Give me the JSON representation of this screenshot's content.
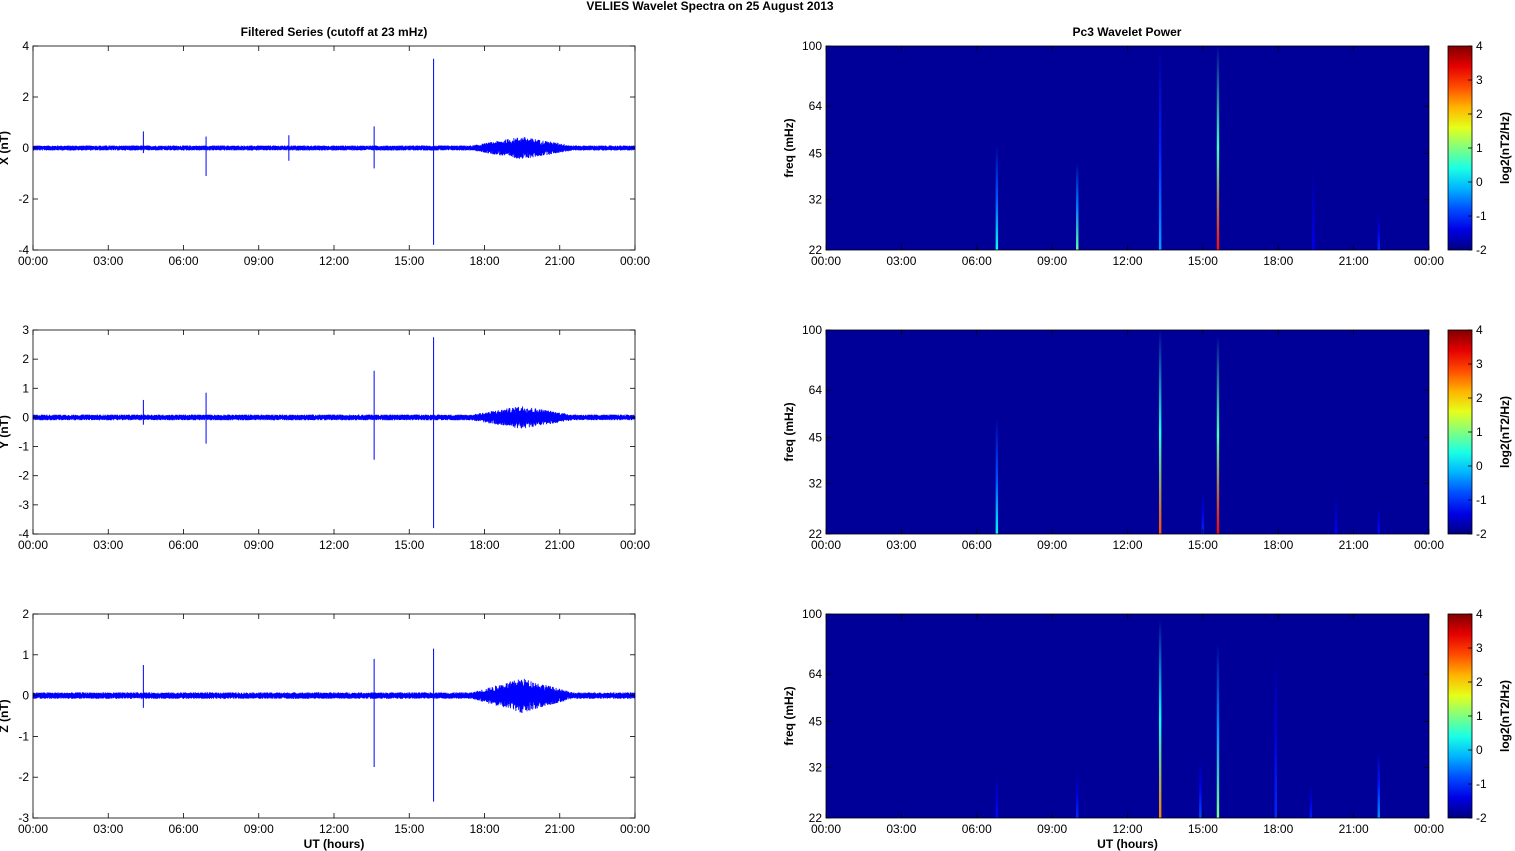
{
  "figure": {
    "title": "VELIES Wavelet Spectra on 25 August    2013",
    "left_title": "Filtered Series (cutoff at 23 mHz)",
    "right_title": "Pc3 Wavelet Power",
    "xlabel": "UT (hours)"
  },
  "chart_data": [
    {
      "type": "line",
      "ylabel": "X (nT)",
      "xlabel": "",
      "x_ticks": [
        "00:00",
        "03:00",
        "06:00",
        "09:00",
        "12:00",
        "15:00",
        "18:00",
        "21:00",
        "00:00"
      ],
      "xlim": [
        0,
        24
      ],
      "ylim": [
        -4,
        4
      ],
      "y_ticks": [
        "-4",
        "-2",
        "0",
        "2",
        "4"
      ],
      "y_tick_values": [
        -4,
        -2,
        0,
        2,
        4
      ],
      "series_color": "#0000ff",
      "noise_amplitude": 0.1,
      "active_window": [
        17.5,
        21.5
      ],
      "active_amplitude": 0.35,
      "spikes": [
        {
          "x": 4.4,
          "max": 0.65,
          "min": -0.2
        },
        {
          "x": 6.9,
          "max": 0.45,
          "min": -1.1
        },
        {
          "x": 10.2,
          "max": 0.5,
          "min": -0.5
        },
        {
          "x": 13.6,
          "max": 0.85,
          "min": -0.8
        },
        {
          "x": 15.97,
          "max": 3.5,
          "min": -3.8
        }
      ]
    },
    {
      "type": "line",
      "ylabel": "Y (nT)",
      "xlabel": "",
      "x_ticks": [
        "00:00",
        "03:00",
        "06:00",
        "09:00",
        "12:00",
        "15:00",
        "18:00",
        "21:00",
        "00:00"
      ],
      "xlim": [
        0,
        24
      ],
      "ylim": [
        -4,
        3
      ],
      "y_ticks": [
        "-4",
        "-3",
        "-2",
        "-1",
        "0",
        "1",
        "2",
        "3"
      ],
      "y_tick_values": [
        -4,
        -3,
        -2,
        -1,
        0,
        1,
        2,
        3
      ],
      "series_color": "#0000ff",
      "noise_amplitude": 0.1,
      "active_window": [
        17.5,
        21.5
      ],
      "active_amplitude": 0.3,
      "spikes": [
        {
          "x": 4.4,
          "max": 0.6,
          "min": -0.25
        },
        {
          "x": 6.9,
          "max": 0.85,
          "min": -0.9
        },
        {
          "x": 13.6,
          "max": 1.6,
          "min": -1.45
        },
        {
          "x": 15.97,
          "max": 2.75,
          "min": -3.8
        }
      ]
    },
    {
      "type": "line",
      "ylabel": "Z (nT)",
      "xlabel": "UT (hours)",
      "x_ticks": [
        "00:00",
        "03:00",
        "06:00",
        "09:00",
        "12:00",
        "15:00",
        "18:00",
        "21:00",
        "00:00"
      ],
      "xlim": [
        0,
        24
      ],
      "ylim": [
        -3,
        2
      ],
      "y_ticks": [
        "-3",
        "-2",
        "-1",
        "0",
        "1",
        "2"
      ],
      "y_tick_values": [
        -3,
        -2,
        -1,
        0,
        1,
        2
      ],
      "series_color": "#0000ff",
      "noise_amplitude": 0.08,
      "active_window": [
        17.5,
        21.5
      ],
      "active_amplitude": 0.35,
      "spikes": [
        {
          "x": 4.4,
          "max": 0.75,
          "min": -0.3
        },
        {
          "x": 13.6,
          "max": 0.9,
          "min": -1.75
        },
        {
          "x": 15.97,
          "max": 1.15,
          "min": -2.6
        }
      ]
    },
    {
      "type": "heatmap",
      "ylabel": "freq (mHz)",
      "xlabel": "",
      "x_ticks": [
        "00:00",
        "03:00",
        "06:00",
        "09:00",
        "12:00",
        "15:00",
        "18:00",
        "21:00",
        "00:00"
      ],
      "xlim": [
        0,
        24
      ],
      "log_y": true,
      "ylim": [
        22,
        100
      ],
      "y_ticks": [
        "22",
        "32",
        "45",
        "64",
        "100"
      ],
      "y_tick_values": [
        22,
        32,
        45,
        64,
        100
      ],
      "colorbar_label": "log2(nT2/Hz)",
      "clim": [
        -2,
        4
      ],
      "c_ticks": [
        "-2",
        "-1",
        "0",
        "1",
        "2",
        "3",
        "4"
      ],
      "c_tick_values": [
        -2,
        -1,
        0,
        1,
        2,
        3,
        4
      ],
      "background_value": -1.85,
      "streaks": [
        {
          "x": 6.8,
          "top": 48,
          "value": 0.3
        },
        {
          "x": 10.0,
          "top": 42,
          "value": 0.8
        },
        {
          "x": 13.3,
          "top": 98,
          "value": -0.3
        },
        {
          "x": 15.6,
          "top": 100,
          "value": 3.2
        },
        {
          "x": 19.4,
          "top": 40,
          "value": -1.3
        },
        {
          "x": 22.0,
          "top": 29,
          "value": -1.0
        }
      ]
    },
    {
      "type": "heatmap",
      "ylabel": "freq (mHz)",
      "xlabel": "",
      "x_ticks": [
        "00:00",
        "03:00",
        "06:00",
        "09:00",
        "12:00",
        "15:00",
        "18:00",
        "21:00",
        "00:00"
      ],
      "xlim": [
        0,
        24
      ],
      "log_y": true,
      "ylim": [
        22,
        100
      ],
      "y_ticks": [
        "22",
        "32",
        "45",
        "64",
        "100"
      ],
      "y_tick_values": [
        22,
        32,
        45,
        64,
        100
      ],
      "colorbar_label": "log2(nT2/Hz)",
      "clim": [
        -2,
        4
      ],
      "c_ticks": [
        "-2",
        "-1",
        "0",
        "1",
        "2",
        "3",
        "4"
      ],
      "c_tick_values": [
        -2,
        -1,
        0,
        1,
        2,
        3,
        4
      ],
      "background_value": -1.85,
      "streaks": [
        {
          "x": 6.8,
          "top": 52,
          "value": 0.2
        },
        {
          "x": 13.3,
          "top": 100,
          "value": 2.8
        },
        {
          "x": 15.6,
          "top": 96,
          "value": 3.3
        },
        {
          "x": 15.0,
          "top": 30,
          "value": -1.0
        },
        {
          "x": 20.3,
          "top": 30,
          "value": -1.3
        },
        {
          "x": 22.0,
          "top": 27,
          "value": -1.2
        }
      ]
    },
    {
      "type": "heatmap",
      "ylabel": "freq (mHz)",
      "xlabel": "UT (hours)",
      "x_ticks": [
        "00:00",
        "03:00",
        "06:00",
        "09:00",
        "12:00",
        "15:00",
        "18:00",
        "21:00",
        "00:00"
      ],
      "xlim": [
        0,
        24
      ],
      "log_y": true,
      "ylim": [
        22,
        100
      ],
      "y_ticks": [
        "22",
        "32",
        "45",
        "64",
        "100"
      ],
      "y_tick_values": [
        22,
        32,
        45,
        64,
        100
      ],
      "colorbar_label": "log2(nT2/Hz)",
      "clim": [
        -2,
        4
      ],
      "c_ticks": [
        "-2",
        "-1",
        "0",
        "1",
        "2",
        "3",
        "4"
      ],
      "c_tick_values": [
        -2,
        -1,
        0,
        1,
        2,
        3,
        4
      ],
      "background_value": -1.85,
      "streaks": [
        {
          "x": 6.8,
          "top": 30,
          "value": -1.2
        },
        {
          "x": 10.0,
          "top": 31,
          "value": -1.0
        },
        {
          "x": 13.3,
          "top": 96,
          "value": 2.5
        },
        {
          "x": 14.9,
          "top": 34,
          "value": -0.8
        },
        {
          "x": 15.6,
          "top": 80,
          "value": 1.0
        },
        {
          "x": 17.9,
          "top": 74,
          "value": -1.0
        },
        {
          "x": 19.3,
          "top": 28,
          "value": -1.1
        },
        {
          "x": 22.0,
          "top": 36,
          "value": -0.4
        }
      ]
    }
  ]
}
